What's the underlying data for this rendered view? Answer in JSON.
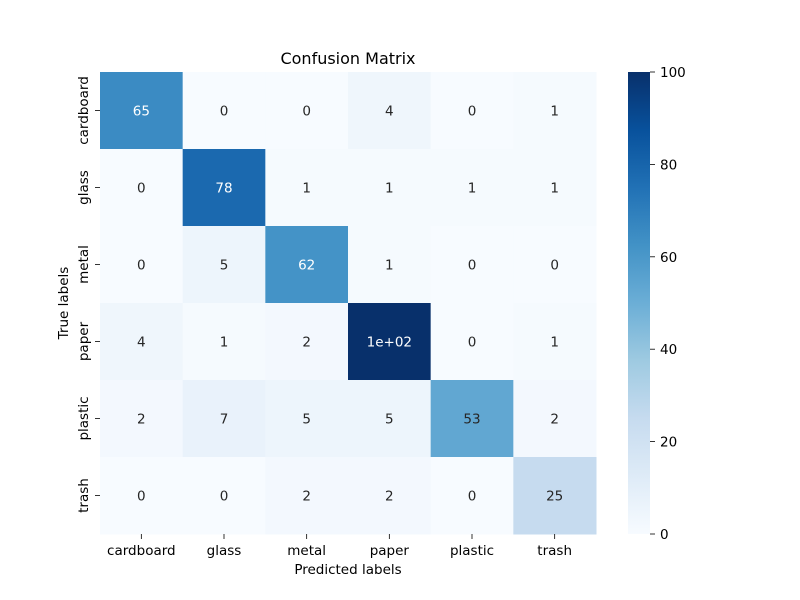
{
  "chart_data": {
    "type": "heatmap",
    "title": "Confusion Matrix",
    "xlabel": "Predicted labels",
    "ylabel": "True labels",
    "x_categories": [
      "cardboard",
      "glass",
      "metal",
      "paper",
      "plastic",
      "trash"
    ],
    "y_categories": [
      "cardboard",
      "glass",
      "metal",
      "paper",
      "plastic",
      "trash"
    ],
    "values": [
      [
        65,
        0,
        0,
        4,
        0,
        1
      ],
      [
        0,
        78,
        1,
        1,
        1,
        1
      ],
      [
        0,
        5,
        62,
        1,
        0,
        0
      ],
      [
        4,
        1,
        2,
        100,
        0,
        1
      ],
      [
        2,
        7,
        5,
        5,
        53,
        2
      ],
      [
        0,
        0,
        2,
        2,
        0,
        25
      ]
    ],
    "cell_labels": [
      [
        "65",
        "0",
        "0",
        "4",
        "0",
        "1"
      ],
      [
        "0",
        "78",
        "1",
        "1",
        "1",
        "1"
      ],
      [
        "0",
        "5",
        "62",
        "1",
        "0",
        "0"
      ],
      [
        "4",
        "1",
        "2",
        "1e+02",
        "0",
        "1"
      ],
      [
        "2",
        "7",
        "5",
        "5",
        "53",
        "2"
      ],
      [
        "0",
        "0",
        "2",
        "2",
        "0",
        "25"
      ]
    ],
    "colorbar": {
      "range": [
        0,
        100
      ],
      "ticks": [
        0,
        20,
        40,
        60,
        80,
        100
      ],
      "colormap": "Blues"
    }
  }
}
